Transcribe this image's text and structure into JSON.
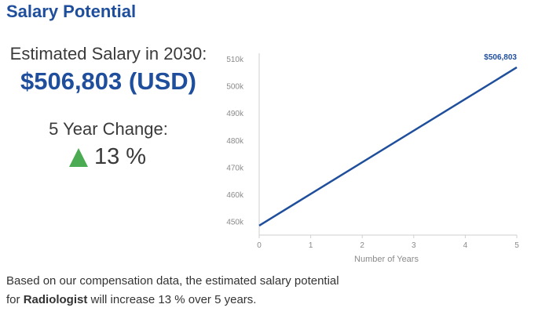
{
  "header": {
    "title": "Salary Potential"
  },
  "estimate": {
    "label": "Estimated Salary in 2030:",
    "value": "$506,803 (USD)"
  },
  "change": {
    "label": "5 Year Change:",
    "icon": "triangle-up-icon",
    "icon_color": "#4aab52",
    "value": "13 %"
  },
  "summary": {
    "line1": "Based on our compensation data, the estimated salary potential",
    "prefix": "for ",
    "occupation": "Radiologist",
    "suffix": " will increase 13 % over 5 years."
  },
  "colors": {
    "accent": "#1f4f9c",
    "up": "#4aab52",
    "axis_text": "#8a8a8a"
  },
  "chart_data": {
    "type": "line",
    "x": [
      0,
      5
    ],
    "xticks": [
      0,
      1,
      2,
      3,
      4,
      5
    ],
    "xlabel": "Number of Years",
    "ylabel": "",
    "yticks": [
      450000,
      460000,
      470000,
      480000,
      490000,
      500000,
      510000
    ],
    "ytick_labels": [
      "450k",
      "460k",
      "470k",
      "480k",
      "490k",
      "500k",
      "510k"
    ],
    "ylim": [
      445000,
      512000
    ],
    "xlim": [
      0,
      5
    ],
    "series": [
      {
        "values": [
          448500,
          506803
        ],
        "color": "#1f4f9c"
      }
    ],
    "end_label": "$506,803",
    "grid": false
  }
}
